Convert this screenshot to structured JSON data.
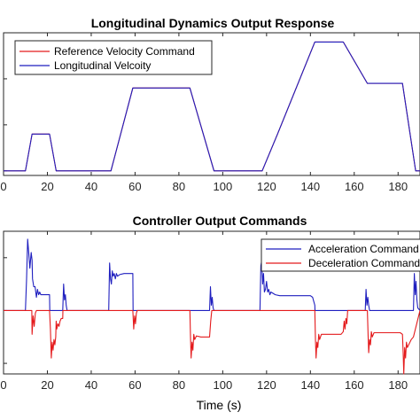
{
  "chart_data": [
    {
      "type": "line",
      "title": "Longitudinal Dynamics Output Response",
      "xlabel": "",
      "ylabel": "",
      "xlim": [
        0,
        190
      ],
      "ylim": [
        -1,
        30
      ],
      "xticks": [
        0,
        20,
        40,
        60,
        80,
        100,
        120,
        140,
        160,
        180
      ],
      "xtick_labels": [
        "0",
        "20",
        "40",
        "60",
        "80",
        "100",
        "120",
        "140",
        "160",
        "180"
      ],
      "grid": false,
      "legend_position": "top-left",
      "series": [
        {
          "name": "Reference Velocity Command",
          "color": "#e41a1c",
          "x": [
            0,
            10,
            13,
            21,
            24,
            49,
            59,
            85,
            96,
            118,
            125,
            142,
            155,
            166,
            182,
            188,
            190
          ],
          "y": [
            0,
            0,
            8,
            8,
            0,
            0,
            18,
            18,
            0,
            0,
            8,
            28,
            28,
            19,
            19,
            0,
            0
          ]
        },
        {
          "name": "Longitudinal Velcoity",
          "color": "#1f1fbf",
          "x": [
            0,
            10,
            13,
            21,
            24,
            49,
            59,
            85,
            96,
            118,
            125,
            142,
            155,
            166,
            182,
            188,
            190
          ],
          "y": [
            0,
            0,
            8,
            8,
            0,
            0,
            18,
            18,
            0,
            0,
            8,
            28,
            28,
            19,
            19,
            0,
            0
          ]
        }
      ]
    },
    {
      "type": "line",
      "title": "Controller Output Commands",
      "xlabel": "Time (s)",
      "ylabel": "",
      "xlim": [
        0,
        190
      ],
      "ylim": [
        -1.2,
        1.5
      ],
      "xticks": [
        0,
        20,
        40,
        60,
        80,
        100,
        120,
        140,
        160,
        180
      ],
      "xtick_labels": [
        "0",
        "20",
        "40",
        "60",
        "80",
        "100",
        "120",
        "140",
        "160",
        "180"
      ],
      "grid": false,
      "legend_position": "top-right",
      "series": [
        {
          "name": "Acceleration Command",
          "color": "#1f1fbf",
          "x": [
            0,
            10,
            10.5,
            11,
            11.5,
            12,
            12.6,
            13,
            13.2,
            13.8,
            14.4,
            15,
            15.5,
            16,
            16.5,
            17,
            18,
            21,
            21.1,
            27,
            27.4,
            27.8,
            28.2,
            28.6,
            29,
            48,
            48.4,
            48.8,
            49.2,
            49.6,
            50,
            50.5,
            51,
            51.5,
            52,
            53,
            55,
            58,
            59,
            59.1,
            94,
            94.4,
            94.8,
            95.2,
            95.6,
            96,
            117,
            117.4,
            117.8,
            118.2,
            118.6,
            119,
            119.5,
            120,
            120.5,
            121,
            121.5,
            122,
            124,
            126,
            130,
            135,
            140,
            141,
            142,
            142.1,
            165,
            165.4,
            165.8,
            166.2,
            166.6,
            167,
            187,
            187.4,
            187.8,
            188.2,
            188.6,
            189,
            190
          ],
          "y": [
            0,
            0,
            0.6,
            1.35,
            1.1,
            0.8,
            1.1,
            0.95,
            0.6,
            0.45,
            0.45,
            0.25,
            0.4,
            0.3,
            0.35,
            0.3,
            0.3,
            0.3,
            0,
            0,
            0.5,
            0.2,
            0.3,
            0.1,
            0,
            0,
            0.9,
            0.6,
            0.5,
            0.75,
            0.65,
            0.7,
            0.6,
            0.7,
            0.65,
            0.68,
            0.7,
            0.7,
            0.7,
            0,
            0,
            0.45,
            0.1,
            0.25,
            0.05,
            0,
            0,
            0.85,
            0.95,
            0.5,
            0.7,
            0.35,
            0.4,
            0.55,
            0.35,
            0.4,
            0.3,
            0.35,
            0.3,
            0.28,
            0.28,
            0.28,
            0.28,
            0.25,
            0.1,
            0,
            0,
            0.4,
            0.1,
            0.25,
            0.1,
            0,
            0,
            0.7,
            0.3,
            0.55,
            0.2,
            0.05,
            0
          ]
        },
        {
          "name": "Deceleration Command",
          "color": "#e41a1c",
          "x": [
            0,
            12.9,
            13,
            13.5,
            14,
            14.5,
            15,
            21,
            21.4,
            21.8,
            22.2,
            22.6,
            23,
            23.4,
            23.8,
            24,
            24.3,
            24.8,
            25.3,
            25.8,
            26.3,
            27,
            27.1,
            59,
            59.4,
            59.8,
            60.2,
            60.6,
            61,
            85,
            85.3,
            85.6,
            86,
            86.4,
            86.8,
            87.2,
            88,
            90,
            94,
            94.5,
            95,
            142,
            142.3,
            142.6,
            143,
            143.4,
            143.8,
            144.2,
            145,
            150,
            154,
            155,
            155.4,
            155.8,
            156.2,
            156.6,
            157,
            166,
            166.3,
            166.6,
            167,
            167.4,
            167.8,
            168.2,
            169,
            175,
            181,
            182,
            182.3,
            182.6,
            183,
            183.4,
            183.8,
            184.2,
            186,
            187,
            190
          ],
          "y": [
            0,
            0,
            -0.45,
            -0.1,
            -0.3,
            -0.05,
            0,
            0,
            -0.35,
            -0.9,
            -0.6,
            -0.75,
            -0.55,
            -0.65,
            -0.5,
            -0.2,
            -0.35,
            -0.25,
            -0.3,
            -0.2,
            -0.15,
            -0.15,
            0,
            0,
            -0.35,
            -0.1,
            -0.25,
            -0.05,
            0,
            0,
            -0.5,
            -0.9,
            -0.6,
            -0.75,
            -0.45,
            -0.55,
            -0.48,
            -0.5,
            -0.5,
            -0.2,
            0,
            0,
            -0.55,
            -0.9,
            -0.6,
            -0.7,
            -0.45,
            -0.55,
            -0.45,
            -0.45,
            -0.45,
            -0.4,
            -0.2,
            -0.35,
            -0.15,
            -0.25,
            0,
            0,
            -0.45,
            -0.8,
            -0.55,
            -0.65,
            -0.4,
            -0.5,
            -0.42,
            -0.42,
            -0.42,
            -0.45,
            -0.8,
            -1.2,
            -0.7,
            -0.9,
            -0.6,
            -0.7,
            -0.55,
            -0.5,
            0
          ]
        }
      ]
    }
  ]
}
